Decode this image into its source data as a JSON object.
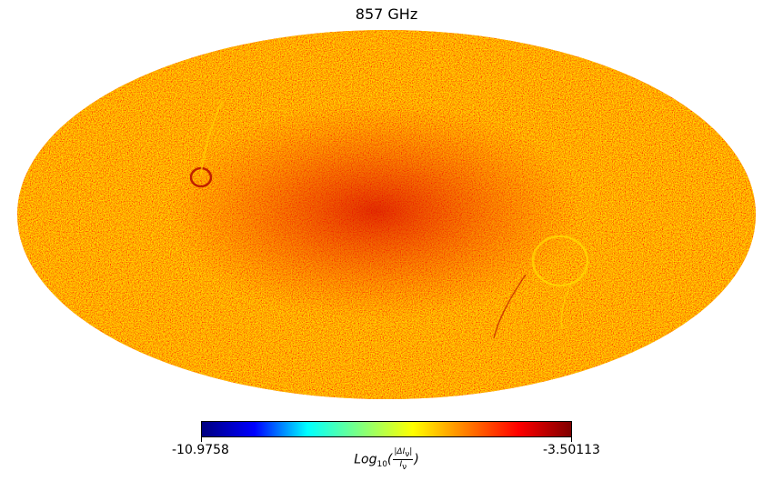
{
  "map": {
    "title": "857 GHz",
    "projection": "Mollweide",
    "colormap": "jet",
    "colormap_stops": [
      "#00007f",
      "#0000ff",
      "#00ffff",
      "#7fff7f",
      "#ffff00",
      "#ff7f00",
      "#ff0000",
      "#7f0000"
    ],
    "background_color": "#ffffff"
  },
  "colorbar": {
    "min_label": "-10.9758",
    "max_label": "-3.50113",
    "label_prefix": "Log",
    "label_subscript": "10",
    "label_numerator": "|ΔI",
    "label_numerator_sub": "ν",
    "label_numerator_end": "|",
    "label_denominator": "I",
    "label_denominator_sub": "ν"
  },
  "chart_data": {
    "type": "heatmap",
    "title": "857 GHz",
    "colorbar_range": [
      -10.9758,
      -3.50113
    ]
  }
}
